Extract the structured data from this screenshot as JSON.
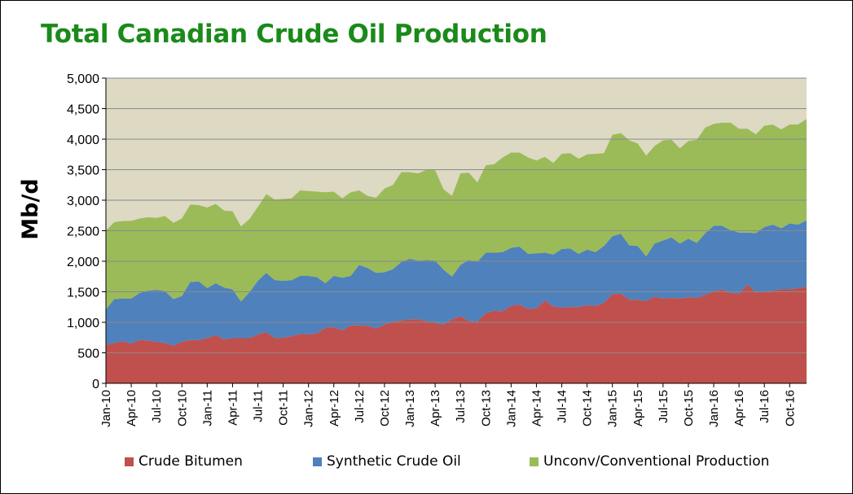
{
  "chart_data": {
    "type": "area",
    "stacked": true,
    "title": "Total Canadian Crude Oil Production",
    "ylabel": "Mb/d",
    "ylim": [
      0,
      5000
    ],
    "yticks": [
      "0",
      "500",
      "1,000",
      "1,500",
      "2,000",
      "2,500",
      "3,000",
      "3,500",
      "4,000",
      "4,500",
      "5,000"
    ],
    "xticks": [
      "Jan-10",
      "Apr-10",
      "Jul-10",
      "Oct-10",
      "Jan-11",
      "Apr-11",
      "Jul-11",
      "Oct-11",
      "Jan-12",
      "Apr-12",
      "Jul-12",
      "Oct-12",
      "Jan-13",
      "Apr-13",
      "Jul-13",
      "Oct-13",
      "Jan-14",
      "Apr-14",
      "Jul-14",
      "Oct-14",
      "Jan-15",
      "Apr-15",
      "Jul-15",
      "Oct-15",
      "Jan-16",
      "Apr-16",
      "Jul-16",
      "Oct-16"
    ],
    "x_start": "Jan-10",
    "n_months": 84,
    "legend_position": "bottom",
    "plot_background": "#ddd9c3",
    "series": [
      {
        "name": "Crude Bitumen",
        "color": "#c0504d",
        "values": [
          630,
          660,
          690,
          650,
          710,
          700,
          680,
          660,
          620,
          680,
          710,
          710,
          740,
          790,
          720,
          740,
          740,
          740,
          800,
          840,
          740,
          750,
          770,
          810,
          800,
          820,
          910,
          920,
          870,
          950,
          950,
          940,
          900,
          960,
          1010,
          1030,
          1050,
          1050,
          1020,
          990,
          960,
          1050,
          1100,
          1020,
          1010,
          1150,
          1190,
          1180,
          1270,
          1290,
          1220,
          1230,
          1360,
          1260,
          1240,
          1250,
          1250,
          1280,
          1270,
          1320,
          1460,
          1470,
          1370,
          1370,
          1350,
          1420,
          1390,
          1400,
          1390,
          1410,
          1400,
          1450,
          1510,
          1540,
          1480,
          1470,
          1620,
          1490,
          1500,
          1520,
          1540,
          1540,
          1560,
          1580
        ]
      },
      {
        "name": "Synthetic Crude Oil",
        "color": "#4f81bd",
        "values": [
          580,
          720,
          700,
          740,
          770,
          820,
          850,
          850,
          760,
          750,
          950,
          960,
          820,
          850,
          850,
          800,
          600,
          750,
          880,
          970,
          950,
          930,
          920,
          950,
          960,
          920,
          730,
          840,
          860,
          810,
          990,
          950,
          910,
          860,
          860,
          960,
          990,
          960,
          1000,
          1020,
          900,
          700,
          840,
          1000,
          980,
          990,
          950,
          970,
          950,
          950,
          900,
          900,
          780,
          850,
          960,
          960,
          870,
          910,
          880,
          930,
          950,
          980,
          890,
          880,
          730,
          870,
          950,
          990,
          900,
          960,
          900,
          1010,
          1070,
          1040,
          1030,
          1000,
          850,
          970,
          1060,
          1080,
          1000,
          1080,
          1040,
          1090
        ]
      },
      {
        "name": "Unconv/Conventional Production",
        "color": "#9bbb59",
        "values": [
          1290,
          1260,
          1270,
          1270,
          1220,
          1200,
          1180,
          1230,
          1250,
          1270,
          1270,
          1250,
          1320,
          1300,
          1260,
          1280,
          1230,
          1200,
          1210,
          1290,
          1320,
          1340,
          1340,
          1400,
          1390,
          1400,
          1490,
          1380,
          1300,
          1370,
          1220,
          1180,
          1230,
          1370,
          1380,
          1470,
          1420,
          1430,
          1480,
          1480,
          1320,
          1320,
          1500,
          1430,
          1300,
          1430,
          1450,
          1550,
          1560,
          1540,
          1580,
          1520,
          1570,
          1500,
          1560,
          1560,
          1560,
          1560,
          1610,
          1520,
          1660,
          1650,
          1720,
          1680,
          1650,
          1600,
          1640,
          1600,
          1560,
          1600,
          1690,
          1730,
          1670,
          1690,
          1760,
          1700,
          1700,
          1620,
          1660,
          1640,
          1620,
          1620,
          1640,
          1660
        ]
      }
    ]
  }
}
